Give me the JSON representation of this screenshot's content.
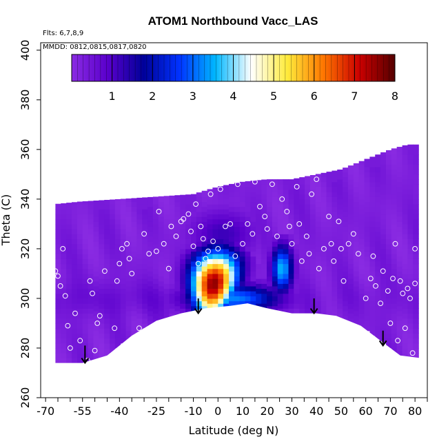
{
  "chart_data": {
    "type": "heatmap",
    "title": "ATOM1 Northbound Vacc_LAS",
    "subtitle_flights": "Flts: 6,7,8,9",
    "subtitle_dates": "MMDD: 0812,0815,0817,0820",
    "xlabel": "Latitude (deg N)",
    "ylabel": "Theta (C)",
    "xlim": [
      -72,
      85
    ],
    "ylim": [
      260,
      403
    ],
    "x_tick_labels": [
      "-70",
      "-55",
      "-40",
      "-25",
      "-10",
      "0",
      "10",
      "20",
      "30",
      "40",
      "50",
      "60",
      "70",
      "80"
    ],
    "x_tick_values": [
      -70,
      -55,
      -40,
      -25,
      -10,
      0,
      10,
      20,
      30,
      40,
      50,
      60,
      70,
      80
    ],
    "x_minor_ticks": [
      -65,
      -60,
      -50,
      -45,
      -35,
      -30,
      -20,
      -15,
      -5,
      5,
      15,
      25,
      35,
      45,
      55,
      65,
      75,
      85
    ],
    "y_tick_labels": [
      "260",
      "280",
      "300",
      "320",
      "340",
      "360",
      "380",
      "400"
    ],
    "y_tick_values": [
      260,
      280,
      300,
      320,
      340,
      360,
      380,
      400
    ],
    "colorbar": {
      "min": 0,
      "max": 8,
      "tick_labels": [
        "1",
        "2",
        "3",
        "4",
        "5",
        "6",
        "7",
        "8"
      ],
      "tick_values": [
        1,
        2,
        3,
        4,
        5,
        6,
        7,
        8
      ],
      "colors": [
        "#8a2be2",
        "#5a00cc",
        "#000099",
        "#0033ff",
        "#00b7ff",
        "#ffffff",
        "#ffeb3b",
        "#ff7700",
        "#cc0000",
        "#550000"
      ]
    },
    "background_color": "#7a22e6",
    "domain_top": [
      [
        -66,
        338
      ],
      [
        -56,
        339
      ],
      [
        -40,
        340
      ],
      [
        -25,
        341
      ],
      [
        -10,
        342
      ],
      [
        0,
        345
      ],
      [
        10,
        347
      ],
      [
        20,
        348
      ],
      [
        30,
        348
      ],
      [
        40,
        350
      ],
      [
        50,
        352
      ],
      [
        60,
        356
      ],
      [
        70,
        360
      ],
      [
        77,
        362
      ],
      [
        80,
        362
      ]
    ],
    "domain_bottom": [
      [
        -70,
        274
      ],
      [
        -55,
        274
      ],
      [
        -45,
        277
      ],
      [
        -35,
        285
      ],
      [
        -25,
        291
      ],
      [
        -15,
        294
      ],
      [
        -5,
        296
      ],
      [
        5,
        297
      ],
      [
        12,
        298
      ],
      [
        20,
        296
      ],
      [
        30,
        294
      ],
      [
        40,
        294
      ],
      [
        48,
        293
      ],
      [
        58,
        289
      ],
      [
        66,
        283
      ],
      [
        74,
        277
      ],
      [
        82,
        276
      ]
    ],
    "domain_left_x": -66,
    "domain_right_x": 80,
    "plume": {
      "center_lat": -3,
      "base_theta": 296,
      "peak_value": 7.6,
      "peak_theta": 306
    },
    "secondary_plumes": [
      {
        "center_lat": 26,
        "value": 3.6,
        "theta_lo": 300,
        "theta_hi": 324
      }
    ],
    "flight_points": [
      [
        -66,
        311
      ],
      [
        -65,
        309
      ],
      [
        -64,
        305
      ],
      [
        -63,
        320
      ],
      [
        -62,
        301
      ],
      [
        -61,
        289
      ],
      [
        -60,
        280
      ],
      [
        -58,
        294
      ],
      [
        -56,
        283
      ],
      [
        -53,
        275
      ],
      [
        -52,
        307
      ],
      [
        -51,
        302
      ],
      [
        -50,
        279
      ],
      [
        -49,
        290
      ],
      [
        -48,
        293
      ],
      [
        -46,
        311
      ],
      [
        -44,
        276
      ],
      [
        -42,
        288
      ],
      [
        -41,
        307
      ],
      [
        -40,
        314
      ],
      [
        -39,
        320
      ],
      [
        -37,
        322
      ],
      [
        -36,
        316
      ],
      [
        -35,
        310
      ],
      [
        -32,
        288
      ],
      [
        -30,
        326
      ],
      [
        -28,
        318
      ],
      [
        -25,
        319
      ],
      [
        -24,
        335
      ],
      [
        -22,
        322
      ],
      [
        -20,
        312
      ],
      [
        -19,
        329
      ],
      [
        -17,
        325
      ],
      [
        -15,
        331
      ],
      [
        -14,
        332
      ],
      [
        -12,
        334
      ],
      [
        -11,
        327
      ],
      [
        -10,
        321
      ],
      [
        -9,
        338
      ],
      [
        -8,
        314
      ],
      [
        -7,
        329
      ],
      [
        -6,
        324
      ],
      [
        -5,
        316
      ],
      [
        -4,
        319
      ],
      [
        -3,
        342
      ],
      [
        -2,
        323
      ],
      [
        0,
        320
      ],
      [
        1,
        344
      ],
      [
        3,
        329
      ],
      [
        5,
        330
      ],
      [
        7,
        317
      ],
      [
        8,
        346
      ],
      [
        10,
        322
      ],
      [
        12,
        330
      ],
      [
        14,
        326
      ],
      [
        15,
        347
      ],
      [
        17,
        337
      ],
      [
        19,
        333
      ],
      [
        20,
        328
      ],
      [
        22,
        346
      ],
      [
        24,
        325
      ],
      [
        26,
        340
      ],
      [
        28,
        335
      ],
      [
        29,
        329
      ],
      [
        30,
        322
      ],
      [
        32,
        345
      ],
      [
        33,
        330
      ],
      [
        34,
        315
      ],
      [
        36,
        325
      ],
      [
        37,
        318
      ],
      [
        38,
        342
      ],
      [
        40,
        348
      ],
      [
        41,
        312
      ],
      [
        43,
        320
      ],
      [
        45,
        333
      ],
      [
        46,
        322
      ],
      [
        47,
        315
      ],
      [
        49,
        331
      ],
      [
        50,
        320
      ],
      [
        51,
        307
      ],
      [
        53,
        322
      ],
      [
        55,
        326
      ],
      [
        57,
        318
      ],
      [
        60,
        300
      ],
      [
        62,
        308
      ],
      [
        63,
        317
      ],
      [
        64,
        305
      ],
      [
        66,
        298
      ],
      [
        67,
        311
      ],
      [
        69,
        303
      ],
      [
        70,
        290
      ],
      [
        71,
        308
      ],
      [
        72,
        322
      ],
      [
        73,
        283
      ],
      [
        74,
        307
      ],
      [
        75,
        302
      ],
      [
        76,
        288
      ],
      [
        77,
        304
      ],
      [
        78,
        300
      ],
      [
        79,
        278
      ],
      [
        80,
        320
      ],
      [
        80,
        306
      ]
    ],
    "arrows": [
      {
        "lat": -54,
        "theta_top": 281,
        "theta_tip": 274
      },
      {
        "lat": -8,
        "theta_top": 300,
        "theta_tip": 294
      },
      {
        "lat": 39,
        "theta_top": 300,
        "theta_tip": 294
      },
      {
        "lat": 67,
        "theta_top": 287,
        "theta_tip": 281
      }
    ]
  }
}
